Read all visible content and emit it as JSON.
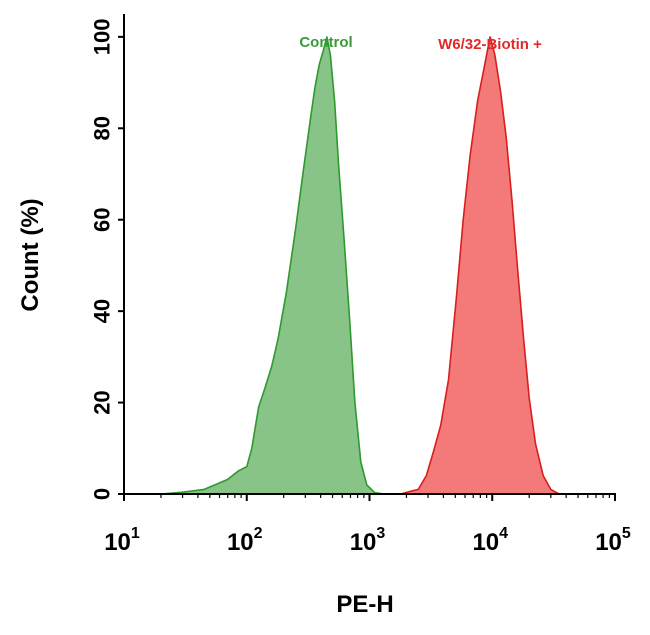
{
  "chart_data": {
    "type": "area",
    "xlabel": "PE-H",
    "ylabel": "Count  (%)",
    "x_scale": "log",
    "xlim": [
      10,
      100000
    ],
    "ylim": [
      0,
      105
    ],
    "x_ticks": [
      {
        "base": "10",
        "exp": "1"
      },
      {
        "base": "10",
        "exp": "2"
      },
      {
        "base": "10",
        "exp": "3"
      },
      {
        "base": "10",
        "exp": "4"
      },
      {
        "base": "10",
        "exp": "5"
      }
    ],
    "y_ticks": [
      "0",
      "20",
      "40",
      "60",
      "80",
      "100"
    ],
    "y_tick_values": [
      0,
      20,
      40,
      60,
      80,
      100
    ],
    "grid": false,
    "series": [
      {
        "name": "Control",
        "fill": "#88c487",
        "stroke": "#2e9a2e",
        "label_color": "#3a9a3a",
        "points": [
          [
            10,
            0
          ],
          [
            20,
            0
          ],
          [
            30,
            0.4
          ],
          [
            45,
            1
          ],
          [
            55,
            2
          ],
          [
            70,
            3.2
          ],
          [
            85,
            5
          ],
          [
            100,
            6
          ],
          [
            110,
            10
          ],
          [
            125,
            19
          ],
          [
            140,
            23
          ],
          [
            160,
            28
          ],
          [
            180,
            34
          ],
          [
            210,
            44
          ],
          [
            250,
            58
          ],
          [
            290,
            71
          ],
          [
            330,
            82
          ],
          [
            360,
            89
          ],
          [
            390,
            94
          ],
          [
            420,
            97
          ],
          [
            450,
            100
          ],
          [
            480,
            96
          ],
          [
            520,
            86
          ],
          [
            560,
            72
          ],
          [
            620,
            56
          ],
          [
            690,
            38
          ],
          [
            760,
            20
          ],
          [
            850,
            7
          ],
          [
            950,
            2
          ],
          [
            1100,
            0.3
          ],
          [
            1300,
            0
          ]
        ]
      },
      {
        "name": "W6/32-Biotin +",
        "fill": "#f37a78",
        "stroke": "#d81f1f",
        "label_color": "#e02a2a",
        "points": [
          [
            1800,
            0
          ],
          [
            2100,
            0.5
          ],
          [
            2500,
            1
          ],
          [
            2900,
            4
          ],
          [
            3300,
            9
          ],
          [
            3800,
            15
          ],
          [
            4400,
            25
          ],
          [
            5100,
            43
          ],
          [
            5800,
            60
          ],
          [
            6600,
            74
          ],
          [
            7600,
            86
          ],
          [
            8700,
            94
          ],
          [
            9600,
            100
          ],
          [
            10500,
            96
          ],
          [
            11700,
            88
          ],
          [
            13000,
            78
          ],
          [
            14500,
            64
          ],
          [
            16000,
            50
          ],
          [
            18000,
            34
          ],
          [
            20000,
            21
          ],
          [
            22500,
            11
          ],
          [
            26000,
            4
          ],
          [
            30000,
            1
          ],
          [
            35000,
            0
          ]
        ]
      }
    ]
  }
}
